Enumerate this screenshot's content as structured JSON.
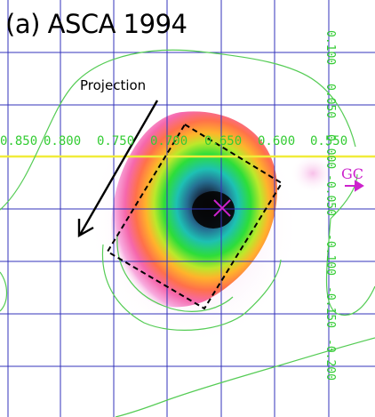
{
  "panel_title": "(a) ASCA 1994",
  "projection_label": "Projection",
  "gc_label": "GC",
  "colors": {
    "grid": "#3333bb",
    "galactic_plane": "#f0ec3a",
    "contour": "#55cc55",
    "tick_labels": "#33cc33",
    "gc_marker": "#cc22cc",
    "projection_box": "#000000"
  },
  "x_ticks": [
    "0.850",
    "0.800",
    "0.750",
    "0.700",
    "0.650",
    "0.600",
    "0.550"
  ],
  "y_ticks": [
    "0.100",
    "0.050",
    "0.000",
    "-0.050",
    "-0.100",
    "-0.150",
    "-0.200"
  ],
  "icons": {
    "source_center": "x-cross-marker",
    "projection_direction": "arrow",
    "gc_direction": "right-arrow"
  }
}
